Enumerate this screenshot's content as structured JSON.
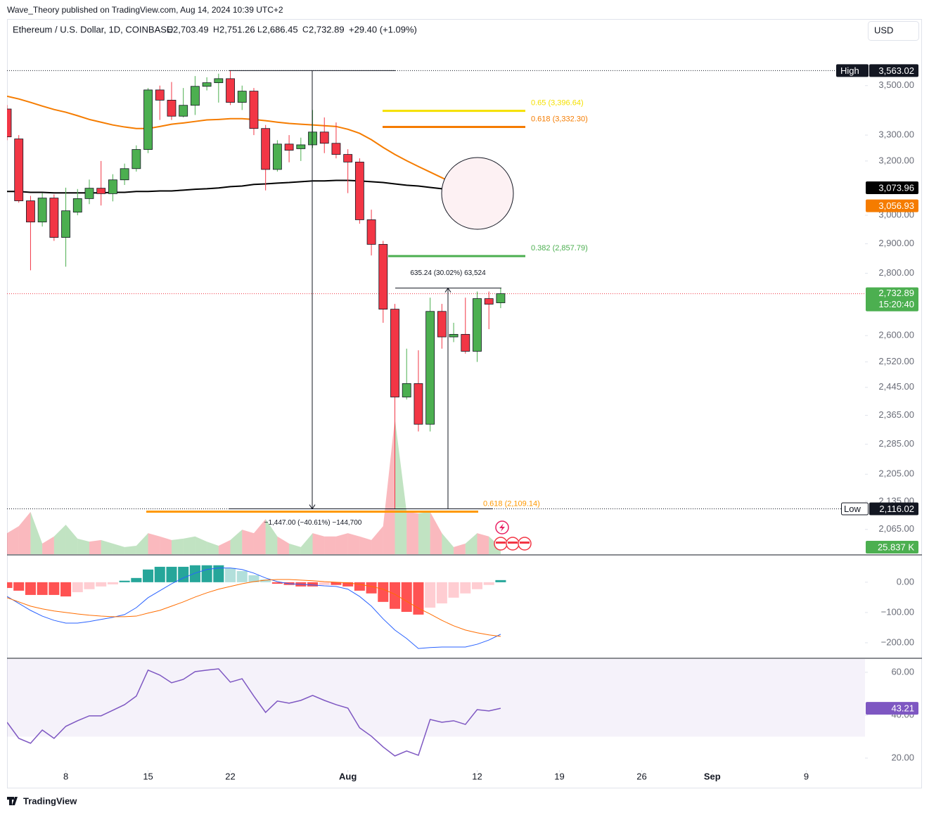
{
  "header": {
    "publisher": "Wave_Theory published on TradingView.com, Aug 14, 2024 10:39 UTC+2",
    "footer": "TradingView"
  },
  "chart_data": {
    "type": "candlestick",
    "title": "Ethereum / U.S. Dollar, 1D, COINBASE",
    "ohlc_legend": {
      "o": "O",
      "open": "2,703.49",
      "h": "H",
      "high": "2,751.26",
      "l": "L",
      "low": "2,686.45",
      "c": "C",
      "close": "2,732.89",
      "change": "+29.40 (+1.09%)"
    },
    "currency": "USD",
    "x": [
      "2024-07-03",
      "2024-07-04",
      "2024-07-05",
      "2024-07-06",
      "2024-07-07",
      "2024-07-08",
      "2024-07-09",
      "2024-07-10",
      "2024-07-11",
      "2024-07-12",
      "2024-07-13",
      "2024-07-14",
      "2024-07-15",
      "2024-07-16",
      "2024-07-17",
      "2024-07-18",
      "2024-07-19",
      "2024-07-20",
      "2024-07-21",
      "2024-07-22",
      "2024-07-23",
      "2024-07-24",
      "2024-07-25",
      "2024-07-26",
      "2024-07-27",
      "2024-07-28",
      "2024-07-29",
      "2024-07-30",
      "2024-07-31",
      "2024-08-01",
      "2024-08-02",
      "2024-08-03",
      "2024-08-04",
      "2024-08-05",
      "2024-08-06",
      "2024-08-07",
      "2024-08-08",
      "2024-08-09",
      "2024-08-10",
      "2024-08-11",
      "2024-08-12",
      "2024-08-13",
      "2024-08-14"
    ],
    "open": [
      3404,
      3285,
      3052,
      2976,
      3062,
      2922,
      3011,
      3060,
      3098,
      3078,
      3129,
      3171,
      3244,
      3482,
      3440,
      3375,
      3419,
      3497,
      3512,
      3529,
      3431,
      3477,
      3326,
      3168,
      3265,
      3247,
      3262,
      3312,
      3268,
      3225,
      3196,
      2984,
      2898,
      2683,
      2417,
      2456,
      2340,
      2676,
      2596,
      2604,
      2552,
      2717,
      2703.49
    ],
    "high": [
      3420,
      3300,
      3070,
      3080,
      3075,
      3100,
      3095,
      3130,
      3200,
      3150,
      3190,
      3260,
      3490,
      3500,
      3515,
      3490,
      3540,
      3535,
      3550,
      3563.02,
      3500,
      3490,
      3340,
      3280,
      3300,
      3290,
      3400,
      3370,
      3350,
      3245,
      3210,
      3020,
      2910,
      2700,
      2560,
      2555,
      2720,
      2700,
      2640,
      2720,
      2740,
      2740,
      2751.26
    ],
    "low": [
      3280,
      3045,
      2810,
      2960,
      2910,
      2822,
      3000,
      3040,
      3035,
      3050,
      3110,
      3160,
      3230,
      3360,
      3360,
      3370,
      3380,
      3480,
      3430,
      3420,
      3400,
      3300,
      3090,
      3160,
      3195,
      3200,
      3250,
      3230,
      3210,
      3080,
      2970,
      2860,
      2640,
      2116.02,
      2410,
      2320,
      2320,
      2560,
      2580,
      2545,
      2520,
      2620,
      2686.45
    ],
    "close": [
      3293,
      3052,
      2976,
      3062,
      2922,
      3016,
      3060,
      3098,
      3078,
      3129,
      3171,
      3244,
      3482,
      3440,
      3375,
      3419,
      3497,
      3512,
      3529,
      3431,
      3477,
      3326,
      3168,
      3265,
      3241,
      3262,
      3312,
      3268,
      3225,
      3196,
      2984,
      2898,
      2683,
      2417,
      2456,
      2340,
      2676,
      2596,
      2604,
      2552,
      2717,
      2699,
      2732.89
    ],
    "up_color": "#4caf50",
    "down_color": "#f23645",
    "log_scale": true,
    "xlim": [
      "2024-07-03",
      "2024-09-14"
    ],
    "xticks": [
      {
        "value": "2024-07-08",
        "label": "8"
      },
      {
        "value": "2024-07-15",
        "label": "15"
      },
      {
        "value": "2024-07-22",
        "label": "22"
      },
      {
        "value": "2024-08-01",
        "label": "Aug"
      },
      {
        "value": "2024-08-12",
        "label": "12"
      },
      {
        "value": "2024-08-19",
        "label": "19"
      },
      {
        "value": "2024-08-26",
        "label": "26"
      },
      {
        "value": "2024-09-01",
        "label": "Sep"
      },
      {
        "value": "2024-09-09",
        "label": "9"
      }
    ],
    "ylim": [
      2005,
      3779
    ],
    "yticks": [
      {
        "value": 3500,
        "label": "3,500.00"
      },
      {
        "value": 3300,
        "label": "3,300.00"
      },
      {
        "value": 3200,
        "label": "3,200.00"
      },
      {
        "value": 3000,
        "label": "3,000.00"
      },
      {
        "value": 2900,
        "label": "2,900.00"
      },
      {
        "value": 2800,
        "label": "2,800.00"
      },
      {
        "value": 2600,
        "label": "2,600.00"
      },
      {
        "value": 2520,
        "label": "2,520.00"
      },
      {
        "value": 2445,
        "label": "2,445.00"
      },
      {
        "value": 2365,
        "label": "2,365.00"
      },
      {
        "value": 2285,
        "label": "2,285.00"
      },
      {
        "value": 2205,
        "label": "2,205.00"
      },
      {
        "value": 2135,
        "label": "2,135.00"
      },
      {
        "value": 2065,
        "label": "2,065.00"
      }
    ],
    "moving_averages": [
      {
        "color": "#f57c00",
        "values": [
          3456,
          3445,
          3431,
          3416,
          3402,
          3391,
          3377,
          3362,
          3351,
          3340,
          3332,
          3326,
          3326,
          3334,
          3343,
          3348,
          3354,
          3360,
          3362,
          3365,
          3365,
          3362,
          3357,
          3351,
          3346,
          3343,
          3340,
          3337,
          3334,
          3323,
          3307,
          3282,
          3252,
          3225,
          3201,
          3179,
          3158,
          3137,
          3116,
          3098,
          3080,
          3067,
          3056.93
        ],
        "last_label": "3,056.93"
      },
      {
        "color": "#000000",
        "values": [
          3086,
          3086,
          3083,
          3083,
          3081,
          3081,
          3081,
          3081,
          3081,
          3083,
          3083,
          3086,
          3086,
          3088,
          3088,
          3091,
          3094,
          3096,
          3099,
          3104,
          3106,
          3112,
          3114,
          3117,
          3119,
          3122,
          3125,
          3125,
          3127,
          3127,
          3125,
          3122,
          3119,
          3114,
          3109,
          3106,
          3101,
          3096,
          3091,
          3086,
          3081,
          3076,
          3073.96
        ],
        "last_label": "3,073.96"
      }
    ],
    "high_marker": {
      "label": "High",
      "value": 3563.02,
      "value_label": "3,563.02"
    },
    "low_marker": {
      "label": "Low",
      "value": 2116.02,
      "value_label": "2,116.02"
    },
    "last_price": {
      "value": 2732.89,
      "value_label": "2,732.89",
      "countdown": "15:20:40"
    },
    "fib_levels": [
      {
        "label": "0.65 (3,396.64)",
        "value": 3396.64,
        "color": "#f5e000"
      },
      {
        "label": "0.618 (3,332.30)",
        "value": 3332.3,
        "color": "#f57c00"
      },
      {
        "label": "0.382 (2,857.79)",
        "value": 2857.79,
        "color": "#4caf50"
      },
      {
        "label": "0.618 (2,109.14)",
        "value": 2109.14,
        "color": "#ff9800"
      }
    ],
    "measures": [
      {
        "label": "635.24 (30.02%) 63,524"
      },
      {
        "label": "−1,447.00 (−40.61%) −144,700"
      }
    ],
    "volume": {
      "values": [
        77,
        103,
        155,
        39,
        65,
        108,
        57,
        46,
        52,
        39,
        26,
        31,
        77,
        65,
        52,
        57,
        65,
        46,
        31,
        52,
        90,
        77,
        129,
        65,
        39,
        26,
        77,
        65,
        65,
        77,
        65,
        52,
        103,
        498,
        155,
        150,
        155,
        77,
        26,
        39,
        77,
        65,
        25.837
      ],
      "ylim": [
        0,
        1956
      ],
      "last_label": "25.837 K",
      "up_color": "rgba(76,175,80,0.35)",
      "down_color": "rgba(242,54,69,0.35)"
    },
    "macd": {
      "histogram": [
        -19,
        -28,
        -42,
        -42,
        -42,
        -47,
        -33,
        -23,
        -14,
        -7,
        5,
        14,
        42,
        51,
        51,
        51,
        56,
        56,
        56,
        47,
        37,
        23,
        9,
        -5,
        -9,
        -14,
        -14,
        -9,
        -9,
        -14,
        -28,
        -37,
        -65,
        -88,
        -98,
        -107,
        -84,
        -70,
        -51,
        -37,
        -23,
        -9,
        7
      ],
      "macd": [
        -47,
        -70,
        -93,
        -112,
        -126,
        -135,
        -135,
        -130,
        -123,
        -116,
        -107,
        -84,
        -51,
        -28,
        -5,
        14,
        30,
        42,
        47,
        47,
        42,
        30,
        14,
        2,
        -5,
        -7,
        -9,
        -12,
        -14,
        -23,
        -47,
        -79,
        -121,
        -158,
        -186,
        -219,
        -216,
        -214,
        -214,
        -214,
        -205,
        -191,
        -172
      ],
      "signal": [
        -51,
        -65,
        -79,
        -88,
        -95,
        -100,
        -105,
        -109,
        -112,
        -114,
        -114,
        -112,
        -102,
        -93,
        -79,
        -65,
        -49,
        -35,
        -23,
        -14,
        -5,
        2,
        7,
        9,
        9,
        7,
        5,
        2,
        0,
        -2,
        -7,
        -14,
        -23,
        -40,
        -63,
        -86,
        -105,
        -126,
        -144,
        -158,
        -167,
        -174,
        -179
      ],
      "ylim": [
        -249,
        88
      ],
      "yticks": [
        {
          "value": 0,
          "label": "0.00"
        },
        {
          "value": -100,
          "label": "−100.00"
        },
        {
          "value": -200,
          "label": "−200.00"
        }
      ],
      "macd_color": "#2962ff",
      "signal_color": "#ff6d00",
      "hist_colors": {
        "grow_above": "#26a69a",
        "fall_above": "#b2dfdb",
        "grow_below": "#ffcdd2",
        "fall_below": "#ff5252"
      }
    },
    "rsi": {
      "values": [
        36.7,
        29.2,
        26.9,
        33.1,
        29.2,
        34.8,
        37.4,
        39.7,
        39.7,
        42.3,
        44.9,
        48.9,
        61.0,
        58.7,
        55.1,
        56.7,
        60.3,
        61.0,
        61.6,
        55.4,
        57.0,
        48.9,
        41.3,
        46.6,
        45.6,
        46.9,
        49.2,
        46.9,
        44.9,
        43.3,
        34.1,
        30.2,
        25.2,
        21.0,
        23.3,
        21.3,
        38.0,
        36.7,
        37.4,
        35.7,
        42.6,
        42.0,
        43.21
      ],
      "ylim": [
        14.4,
        66.2
      ],
      "yticks": [
        {
          "value": 60,
          "label": "60.00"
        },
        {
          "value": 40,
          "label": "40.00"
        },
        {
          "value": 20,
          "label": "20.00"
        }
      ],
      "band": [
        30,
        70
      ],
      "color": "#7e57c2",
      "last_label": "43.21"
    }
  }
}
